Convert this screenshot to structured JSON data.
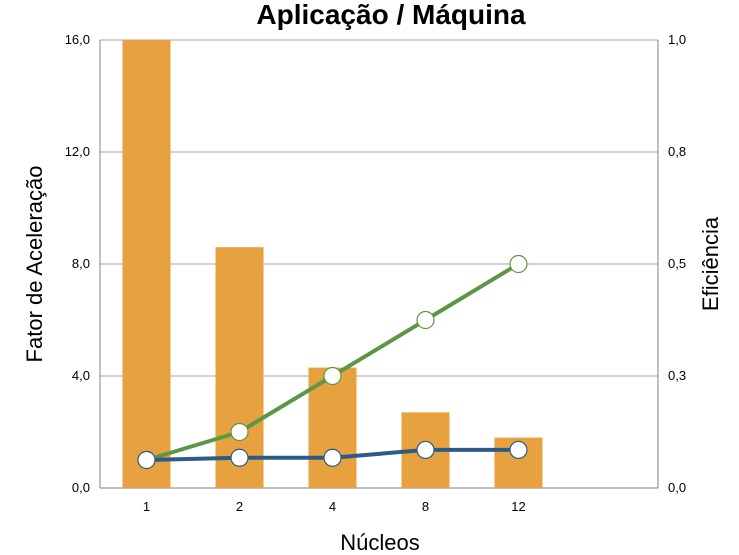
{
  "chart_data": {
    "type": "bar",
    "title": "Aplicação / Máquina",
    "xlabel": "Núcleos",
    "ylabel": "Fator de Aceleração",
    "ylabel_right": "Eficiência",
    "categories": [
      "1",
      "2",
      "4",
      "8",
      "12"
    ],
    "x_slots": 6,
    "ylim": [
      0,
      16
    ],
    "y2lim": [
      0,
      0.8
    ],
    "yticks": [
      "0,0",
      "4,0",
      "8,0",
      "12,0",
      "16,0"
    ],
    "y2ticks": [
      "0,0",
      "0,3",
      "0,5",
      "0,8",
      "1,0"
    ],
    "grid": true,
    "bars": {
      "axis": "left",
      "color": "#E8A13F",
      "values": [
        16.0,
        8.6,
        4.3,
        2.7,
        1.8
      ]
    },
    "series": [
      {
        "axis": "right",
        "color": "#5B9744",
        "marker_fill": "#ffffff",
        "values": [
          0.05,
          0.1,
          0.2,
          0.3,
          0.4
        ]
      },
      {
        "axis": "right",
        "color": "#2E5A87",
        "marker_fill": "#ffffff",
        "values": [
          0.05,
          0.054,
          0.054,
          0.068,
          0.068
        ]
      }
    ]
  }
}
